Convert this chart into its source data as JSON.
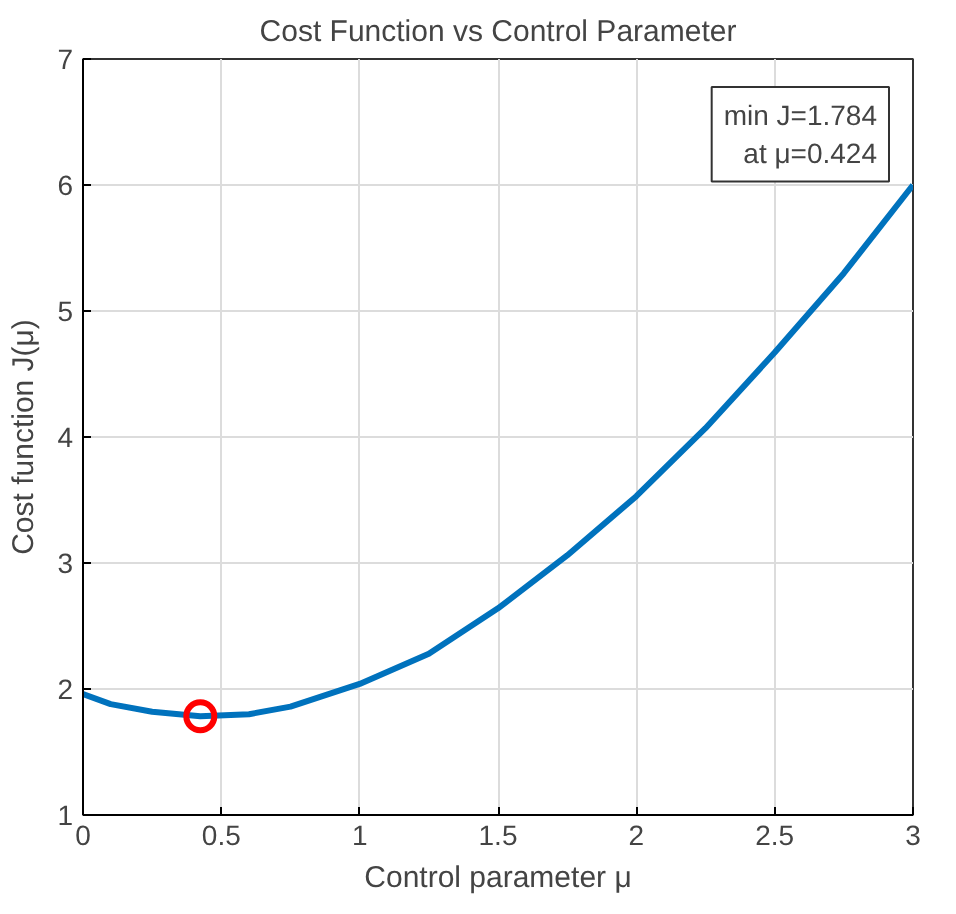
{
  "chart_data": {
    "type": "line",
    "title": "Cost Function vs Control Parameter",
    "xlabel": "Control parameter μ",
    "ylabel": "Cost function J(μ)",
    "series": [
      {
        "color": "#0072bd",
        "x": [
          0,
          0.1,
          0.25,
          0.424,
          0.6,
          0.75,
          1,
          1.25,
          1.5,
          1.75,
          2,
          2.25,
          2.5,
          2.75,
          3
        ],
        "values": [
          1.96,
          1.88,
          1.82,
          1.784,
          1.8,
          1.86,
          2.04,
          2.28,
          2.64,
          3.06,
          3.53,
          4.07,
          4.67,
          5.3,
          6.0
        ],
        "marker": "none"
      },
      {
        "type": "scatter",
        "color": "#ff0000",
        "x": [
          0.424
        ],
        "values": [
          1.784
        ],
        "marker": "circle"
      }
    ],
    "annotations": [
      "min J=1.784\nat μ=0.424"
    ],
    "xlim": [
      0,
      3
    ],
    "ylim": [
      1,
      7
    ],
    "xticks": [
      0,
      0.5,
      1,
      1.5,
      2,
      2.5,
      3
    ],
    "yticks": [
      1,
      2,
      3,
      4,
      5,
      6,
      7
    ],
    "grid": true
  }
}
